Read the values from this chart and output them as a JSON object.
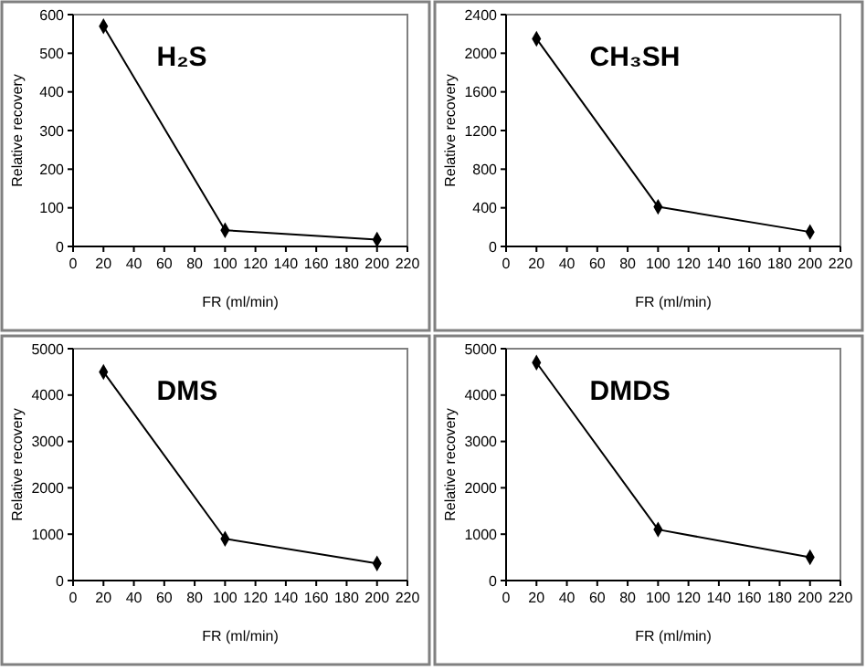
{
  "chart_data": [
    {
      "type": "line",
      "title": "H₂S",
      "xlabel": "FR (ml/min)",
      "ylabel": "Relative recovery",
      "x": [
        20,
        100,
        200
      ],
      "series": [
        {
          "color": "#000000",
          "values": [
            570,
            42,
            18
          ]
        }
      ],
      "xlim": [
        0,
        220
      ],
      "xticks": [
        0,
        20,
        40,
        60,
        80,
        100,
        120,
        140,
        160,
        180,
        200,
        220
      ],
      "ylim": [
        0,
        600
      ],
      "yticks": [
        0,
        100,
        200,
        300,
        400,
        500,
        600
      ],
      "marker": "diamond"
    },
    {
      "type": "line",
      "title": "CH₃SH",
      "xlabel": "FR (ml/min)",
      "ylabel": "Relative recovery",
      "x": [
        20,
        100,
        200
      ],
      "series": [
        {
          "color": "#000000",
          "values": [
            2150,
            410,
            150
          ]
        }
      ],
      "xlim": [
        0,
        220
      ],
      "xticks": [
        0,
        20,
        40,
        60,
        80,
        100,
        120,
        140,
        160,
        180,
        200,
        220
      ],
      "ylim": [
        0,
        2400
      ],
      "yticks": [
        0,
        400,
        800,
        1200,
        1600,
        2000,
        2400
      ],
      "marker": "diamond"
    },
    {
      "type": "line",
      "title": "DMS",
      "xlabel": "FR (ml/min)",
      "ylabel": "Relative recovery",
      "x": [
        20,
        100,
        200
      ],
      "series": [
        {
          "color": "#000000",
          "values": [
            4500,
            900,
            370
          ]
        }
      ],
      "xlim": [
        0,
        220
      ],
      "xticks": [
        0,
        20,
        40,
        60,
        80,
        100,
        120,
        140,
        160,
        180,
        200,
        220
      ],
      "ylim": [
        0,
        5000
      ],
      "yticks": [
        0,
        1000,
        2000,
        3000,
        4000,
        5000
      ],
      "marker": "diamond"
    },
    {
      "type": "line",
      "title": "DMDS",
      "xlabel": "FR (ml/min)",
      "ylabel": "Relative recovery",
      "x": [
        20,
        100,
        200
      ],
      "series": [
        {
          "color": "#000000",
          "values": [
            4700,
            1100,
            500
          ]
        }
      ],
      "xlim": [
        0,
        220
      ],
      "xticks": [
        0,
        20,
        40,
        60,
        80,
        100,
        120,
        140,
        160,
        180,
        200,
        220
      ],
      "ylim": [
        0,
        5000
      ],
      "yticks": [
        0,
        1000,
        2000,
        3000,
        4000,
        5000
      ],
      "marker": "diamond"
    }
  ]
}
